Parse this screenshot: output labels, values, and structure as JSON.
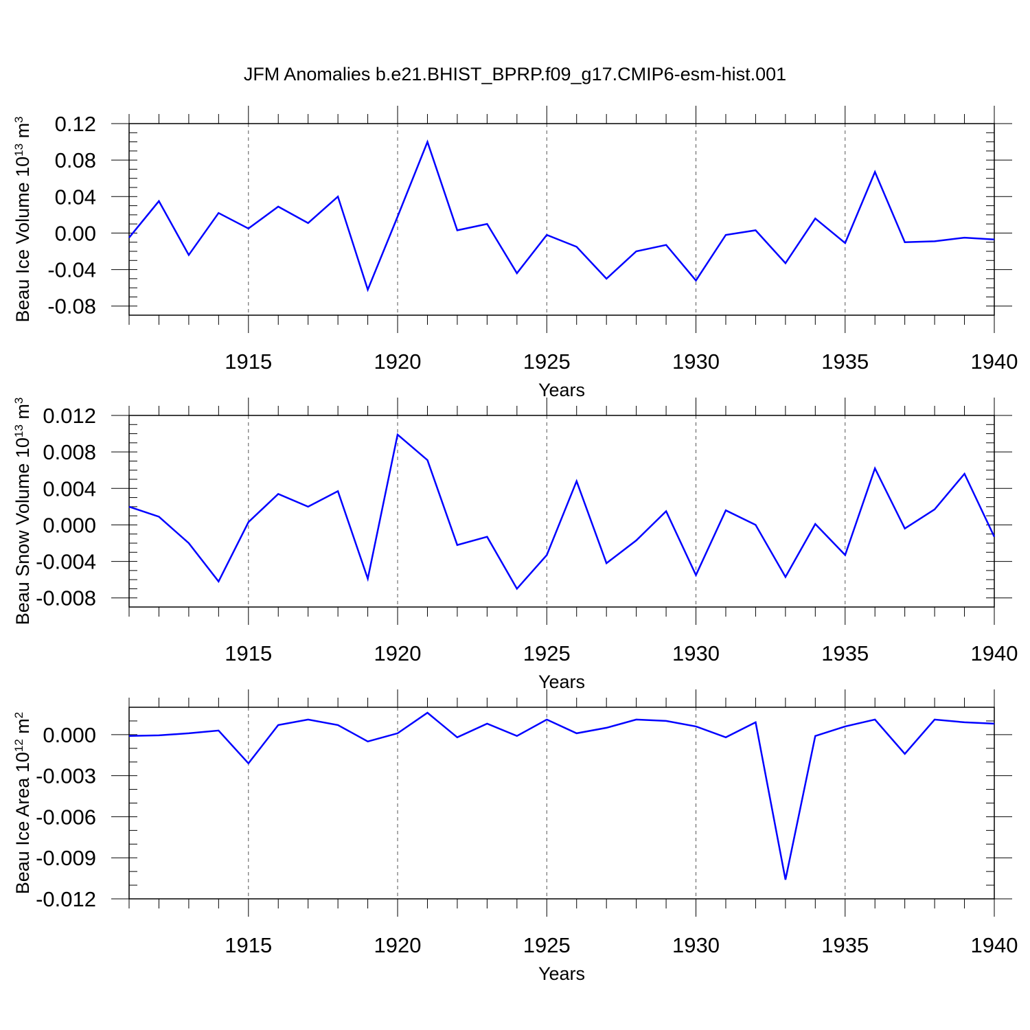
{
  "title": "JFM Anomalies b.e21.BHIST_BPRP.f09_g17.CMIP6-esm-hist.001",
  "colors": {
    "line": "#0000ff",
    "axis": "#000000",
    "grid": "#555555"
  },
  "chart_data": [
    {
      "type": "line",
      "name": "ice-volume",
      "title": "JFM Anomalies b.e21.BHIST_BPRP.f09_g17.CMIP6-esm-hist.001",
      "xlabel": "Years",
      "ylabel": {
        "main": "Beau Ice Volume 10",
        "sup1": "13",
        "mid": " m",
        "sup2": "3"
      },
      "xlim": [
        1911,
        1940
      ],
      "ylim": [
        -0.09,
        0.12
      ],
      "yticks": [
        0.12,
        0.08,
        0.04,
        0.0,
        -0.04,
        -0.08
      ],
      "ytick_labels": [
        "0.12",
        "0.08",
        "0.04",
        "0.00",
        "-0.04",
        "-0.08"
      ],
      "yminor_step": 0.01,
      "xticks": [
        1915,
        1920,
        1925,
        1930,
        1935,
        1940
      ],
      "xtick_labels": [
        "1915",
        "1920",
        "1925",
        "1930",
        "1935",
        "1940"
      ],
      "x": [
        1911,
        1912,
        1913,
        1914,
        1915,
        1916,
        1917,
        1918,
        1919,
        1920,
        1921,
        1922,
        1923,
        1924,
        1925,
        1926,
        1927,
        1928,
        1929,
        1930,
        1931,
        1932,
        1933,
        1934,
        1935,
        1936,
        1937,
        1938,
        1939,
        1940
      ],
      "values": [
        -0.005,
        0.035,
        -0.024,
        0.022,
        0.005,
        0.029,
        0.011,
        0.04,
        -0.062,
        0.018,
        0.1,
        0.003,
        0.01,
        -0.044,
        -0.002,
        -0.015,
        -0.05,
        -0.02,
        -0.013,
        -0.052,
        -0.002,
        0.003,
        -0.033,
        0.016,
        -0.011,
        0.067,
        -0.01,
        -0.009,
        -0.005,
        -0.007
      ]
    },
    {
      "type": "line",
      "name": "snow-volume",
      "xlabel": "Years",
      "ylabel": {
        "main": "Beau Snow Volume 10",
        "sup1": "13",
        "mid": " m",
        "sup2": "3"
      },
      "xlim": [
        1911,
        1940
      ],
      "ylim": [
        -0.009,
        0.012
      ],
      "yticks": [
        0.012,
        0.008,
        0.004,
        0.0,
        -0.004,
        -0.008
      ],
      "ytick_labels": [
        "0.012",
        "0.008",
        "0.004",
        "0.000",
        "-0.004",
        "-0.008"
      ],
      "yminor_step": 0.001,
      "xticks": [
        1915,
        1920,
        1925,
        1930,
        1935,
        1940
      ],
      "xtick_labels": [
        "1915",
        "1920",
        "1925",
        "1930",
        "1935",
        "1940"
      ],
      "x": [
        1911,
        1912,
        1913,
        1914,
        1915,
        1916,
        1917,
        1918,
        1919,
        1920,
        1921,
        1922,
        1923,
        1924,
        1925,
        1926,
        1927,
        1928,
        1929,
        1930,
        1931,
        1932,
        1933,
        1934,
        1935,
        1936,
        1937,
        1938,
        1939,
        1940
      ],
      "values": [
        0.002,
        0.0009,
        -0.002,
        -0.0062,
        0.0003,
        0.0034,
        0.002,
        0.0037,
        -0.0059,
        0.0099,
        0.0071,
        -0.0022,
        -0.0013,
        -0.007,
        -0.0033,
        0.0048,
        -0.0042,
        -0.0017,
        0.0015,
        -0.0055,
        0.0016,
        0.0,
        -0.0057,
        0.0001,
        -0.0033,
        0.0062,
        -0.0004,
        0.0017,
        0.0056,
        -0.0013
      ]
    },
    {
      "type": "line",
      "name": "ice-area",
      "xlabel": "Years",
      "ylabel": {
        "main": "Beau Ice Area 10",
        "sup1": "12",
        "mid": " m",
        "sup2": "2"
      },
      "xlim": [
        1911,
        1940
      ],
      "ylim": [
        -0.012,
        0.002
      ],
      "yticks": [
        0.0,
        -0.003,
        -0.006,
        -0.009,
        -0.012
      ],
      "ytick_labels": [
        "0.000",
        "-0.003",
        "-0.006",
        "-0.009",
        "-0.012"
      ],
      "yminor_step": 0.001,
      "xticks": [
        1915,
        1920,
        1925,
        1930,
        1935,
        1940
      ],
      "xtick_labels": [
        "1915",
        "1920",
        "1925",
        "1930",
        "1935",
        "1940"
      ],
      "x": [
        1911,
        1912,
        1913,
        1914,
        1915,
        1916,
        1917,
        1918,
        1919,
        1920,
        1921,
        1922,
        1923,
        1924,
        1925,
        1926,
        1927,
        1928,
        1929,
        1930,
        1931,
        1932,
        1933,
        1934,
        1935,
        1936,
        1937,
        1938,
        1939,
        1940
      ],
      "values": [
        -0.0001,
        -5e-05,
        0.0001,
        0.0003,
        -0.0021,
        0.0007,
        0.0011,
        0.0007,
        -0.0005,
        0.0001,
        0.0016,
        -0.0002,
        0.0008,
        -0.0001,
        0.0011,
        0.0001,
        0.0005,
        0.0011,
        0.001,
        0.0006,
        -0.0002,
        0.0009,
        -0.0106,
        -0.0001,
        0.0006,
        0.0011,
        -0.0014,
        0.0011,
        0.0009,
        0.0008
      ]
    }
  ]
}
